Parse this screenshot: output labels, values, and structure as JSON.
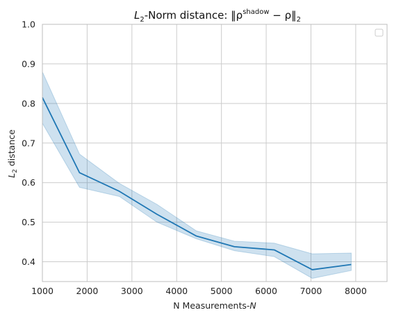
{
  "chart_data": {
    "type": "line",
    "title_parts": {
      "prefix_italic": "L",
      "prefix_sub": "2",
      "text": "-Norm distance: ‖ρ",
      "sup": "shadow",
      "after_sup": " − ρ‖",
      "end_sub": "2"
    },
    "xlabel": {
      "text": "N Measurements-",
      "italic": "N"
    },
    "ylabel": {
      "italic": "L",
      "sub": "2",
      "text": " distance"
    },
    "xlim": [
      1000,
      8700
    ],
    "ylim": [
      0.35,
      1.0
    ],
    "x_ticks": [
      1000,
      2000,
      3000,
      4000,
      5000,
      6000,
      7000,
      8000
    ],
    "x_tick_labels": [
      "1000",
      "2000",
      "3000",
      "4000",
      "5000",
      "6000",
      "7000",
      "8000"
    ],
    "y_ticks": [
      0.4,
      0.5,
      0.6,
      0.7,
      0.8,
      0.9,
      1.0
    ],
    "y_tick_labels": [
      "0.4",
      "0.5",
      "0.6",
      "0.7",
      "0.8",
      "0.9",
      "1.0"
    ],
    "grid": true,
    "legend": {
      "placement": "top-right",
      "entries": []
    },
    "series": [
      {
        "color": "#1f77b4",
        "band_color": "#1f77b4",
        "x": [
          1000,
          1830,
          2720,
          3560,
          4440,
          5290,
          6180,
          7030,
          7900
        ],
        "y": [
          0.815,
          0.625,
          0.578,
          0.52,
          0.465,
          0.438,
          0.43,
          0.38,
          0.393
        ],
        "lower": [
          0.75,
          0.588,
          0.565,
          0.5,
          0.458,
          0.428,
          0.413,
          0.358,
          0.378
        ],
        "upper": [
          0.88,
          0.672,
          0.598,
          0.545,
          0.478,
          0.452,
          0.447,
          0.42,
          0.422
        ]
      }
    ]
  }
}
